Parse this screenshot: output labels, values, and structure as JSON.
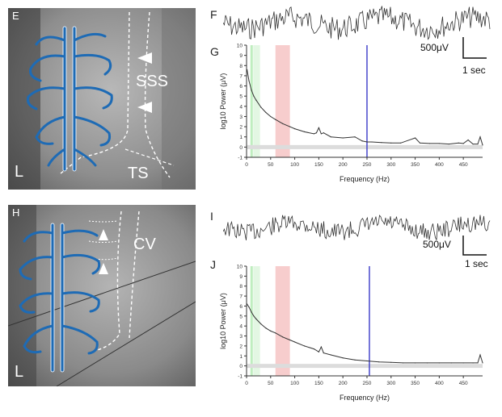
{
  "panels": {
    "E": {
      "letter": "E",
      "side_label": "L",
      "sss_label": "SSS",
      "ts_label": "TS"
    },
    "F": {
      "letter": "F",
      "scale_voltage": "500μV",
      "scale_time": "1 sec"
    },
    "G": {
      "letter": "G"
    },
    "H": {
      "letter": "H",
      "side_label": "L",
      "cv_label": "CV"
    },
    "I": {
      "letter": "I",
      "scale_voltage": "500μV",
      "scale_time": "1 sec"
    },
    "J": {
      "letter": "J"
    }
  },
  "colors": {
    "vessel": "#1e6bb5",
    "green_band": "#c9f0c9",
    "red_band": "#f7cccc",
    "blue_line": "#3a3ac8",
    "baseline_band": "#d9d9d9",
    "curve": "#333333"
  },
  "chart_data": [
    {
      "id": "G",
      "type": "line",
      "xlabel": "Frequency (Hz)",
      "ylabel": "log10 Power (μV)",
      "xlim": [
        0,
        490
      ],
      "ylim": [
        -1,
        10
      ],
      "xticks": [
        0,
        50,
        100,
        150,
        200,
        250,
        300,
        350,
        400,
        450
      ],
      "yticks": [
        -1,
        0,
        1,
        2,
        3,
        4,
        5,
        6,
        7,
        8,
        9,
        10
      ],
      "bands": [
        {
          "from": 8,
          "to": 13,
          "color": "green"
        },
        {
          "from": 14,
          "to": 28,
          "color": "light-green"
        },
        {
          "from": 60,
          "to": 90,
          "color": "red"
        }
      ],
      "vline": 250,
      "baseline_band": [
        -0.2,
        0.2
      ],
      "x": [
        1,
        5,
        10,
        15,
        20,
        30,
        40,
        50,
        60,
        75,
        90,
        100,
        120,
        140,
        145,
        150,
        155,
        160,
        175,
        200,
        225,
        240,
        250,
        260,
        280,
        300,
        320,
        350,
        360,
        380,
        400,
        420,
        440,
        450,
        460,
        470,
        480,
        485,
        490
      ],
      "y": [
        7.6,
        6.5,
        5.6,
        5.0,
        4.6,
        3.9,
        3.4,
        3.0,
        2.7,
        2.3,
        2.0,
        1.8,
        1.5,
        1.3,
        1.4,
        1.9,
        1.3,
        1.4,
        1.0,
        0.9,
        1.0,
        0.6,
        0.5,
        0.5,
        0.45,
        0.4,
        0.4,
        0.9,
        0.4,
        0.35,
        0.35,
        0.3,
        0.4,
        0.35,
        0.7,
        0.3,
        0.3,
        1.0,
        0.2
      ]
    },
    {
      "id": "J",
      "type": "line",
      "xlabel": "Frequency (Hz)",
      "ylabel": "log10 Power (μV)",
      "xlim": [
        0,
        490
      ],
      "ylim": [
        -1,
        10
      ],
      "xticks": [
        0,
        50,
        100,
        150,
        200,
        250,
        300,
        350,
        400,
        450
      ],
      "yticks": [
        -1,
        0,
        1,
        2,
        3,
        4,
        5,
        6,
        7,
        8,
        9,
        10
      ],
      "bands": [
        {
          "from": 8,
          "to": 13,
          "color": "green"
        },
        {
          "from": 14,
          "to": 28,
          "color": "light-green"
        },
        {
          "from": 60,
          "to": 90,
          "color": "red"
        }
      ],
      "vline": 255,
      "baseline_band": [
        -0.2,
        0.2
      ],
      "x": [
        1,
        5,
        10,
        15,
        20,
        30,
        40,
        50,
        60,
        75,
        90,
        100,
        120,
        140,
        150,
        155,
        160,
        175,
        200,
        225,
        250,
        275,
        300,
        325,
        350,
        375,
        400,
        425,
        450,
        470,
        480,
        485,
        490
      ],
      "y": [
        6.2,
        5.9,
        5.4,
        5.0,
        4.7,
        4.2,
        3.8,
        3.5,
        3.3,
        2.9,
        2.6,
        2.4,
        2.0,
        1.7,
        1.4,
        1.9,
        1.3,
        1.1,
        0.8,
        0.6,
        0.5,
        0.4,
        0.35,
        0.3,
        0.3,
        0.3,
        0.3,
        0.3,
        0.3,
        0.3,
        0.3,
        1.1,
        0.3
      ]
    }
  ]
}
